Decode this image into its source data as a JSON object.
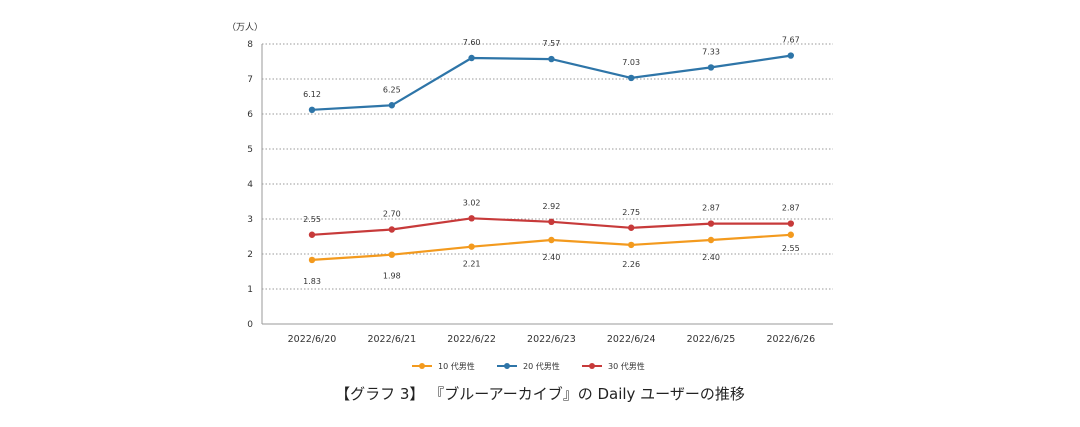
{
  "chart_data": {
    "type": "line",
    "title": "【グラフ 3】 『ブルーアーカイブ』の Daily ユーザーの推移",
    "unit_label": "（万人）",
    "categories": [
      "2022/6/20",
      "2022/6/21",
      "2022/6/22",
      "2022/6/23",
      "2022/6/24",
      "2022/6/25",
      "2022/6/26"
    ],
    "ylim": [
      0,
      8
    ],
    "yticks": [
      0,
      1,
      2,
      3,
      4,
      5,
      6,
      7,
      8
    ],
    "grid": true,
    "legend_position": "bottom",
    "series": [
      {
        "name": "10 代男性",
        "color": "#F39A1E",
        "values": [
          1.83,
          1.98,
          2.21,
          2.4,
          2.26,
          2.4,
          2.55
        ],
        "labels": [
          "1.83",
          "1.98",
          "2.21",
          "2.40",
          "2.26",
          "2.40",
          "2.55"
        ]
      },
      {
        "name": "20 代男性",
        "color": "#2E75A8",
        "values": [
          6.12,
          6.25,
          7.6,
          7.57,
          7.03,
          7.33,
          7.67
        ],
        "labels": [
          "6.12",
          "6.25",
          "7.60",
          "7.57",
          "7.03",
          "7.33",
          "7.67"
        ]
      },
      {
        "name": "30 代男性",
        "color": "#C73A3A",
        "values": [
          2.55,
          2.7,
          3.02,
          2.92,
          2.75,
          2.87,
          2.87
        ],
        "labels": [
          "2.55",
          "2.70",
          "3.02",
          "2.92",
          "2.75",
          "2.87",
          "2.87"
        ]
      }
    ]
  }
}
